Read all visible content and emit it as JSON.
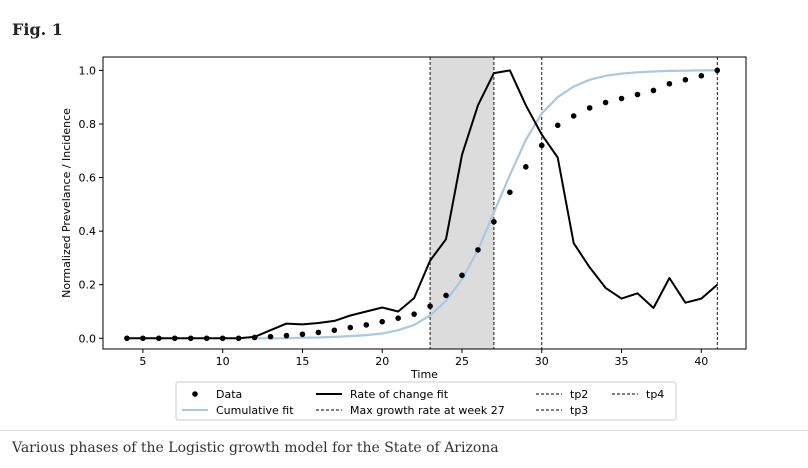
{
  "figure": {
    "label": "Fig. 1",
    "caption": "Various phases of the Logistic growth model for the State of Arizona"
  },
  "chart_data": {
    "type": "line",
    "xlabel": "Time",
    "ylabel": "Normalized Prevelance / Incidence",
    "xlim": [
      2.5,
      42.8
    ],
    "ylim": [
      -0.04,
      1.05
    ],
    "xticks": [
      5,
      10,
      15,
      20,
      25,
      30,
      35,
      40
    ],
    "yticks": [
      0.0,
      0.2,
      0.4,
      0.6,
      0.8,
      1.0
    ],
    "xtick_labels": [
      "5",
      "10",
      "15",
      "20",
      "25",
      "30",
      "35",
      "40"
    ],
    "ytick_labels": [
      "0.0",
      "0.2",
      "0.4",
      "0.6",
      "0.8",
      "1.0"
    ],
    "grid": false,
    "legend_position": "bottom-center",
    "shaded_region": {
      "x_start": 23,
      "x_end": 27,
      "color": "#dcdcdc"
    },
    "vertical_lines": [
      {
        "name": "Max growth rate at week 27",
        "x": 27
      },
      {
        "name": "tp2",
        "x": 23
      },
      {
        "name": "tp3",
        "x": 30
      },
      {
        "name": "tp4",
        "x": 41
      }
    ],
    "series": [
      {
        "name": "Data",
        "kind": "scatter",
        "color": "#000000",
        "x": [
          4,
          5,
          6,
          7,
          8,
          9,
          10,
          11,
          12,
          13,
          14,
          15,
          16,
          17,
          18,
          19,
          20,
          21,
          22,
          23,
          24,
          25,
          26,
          27,
          28,
          29,
          30,
          31,
          32,
          33,
          34,
          35,
          36,
          37,
          38,
          39,
          40,
          41
        ],
        "y": [
          0.0,
          0.0,
          0.0,
          0.0,
          0.0,
          0.0,
          0.0,
          0.0,
          0.003,
          0.006,
          0.01,
          0.015,
          0.022,
          0.03,
          0.04,
          0.05,
          0.062,
          0.075,
          0.09,
          0.12,
          0.16,
          0.235,
          0.33,
          0.435,
          0.545,
          0.64,
          0.72,
          0.795,
          0.83,
          0.86,
          0.88,
          0.895,
          0.91,
          0.925,
          0.95,
          0.965,
          0.98,
          1.0
        ]
      },
      {
        "name": "Rate of change fit",
        "kind": "line",
        "color": "#000000",
        "x": [
          4,
          5,
          6,
          7,
          8,
          9,
          10,
          11,
          12,
          13,
          14,
          15,
          16,
          17,
          18,
          19,
          20,
          21,
          22,
          23,
          24,
          25,
          26,
          27,
          28,
          29,
          30,
          31,
          32,
          33,
          34,
          35,
          36,
          37,
          38,
          39,
          40,
          41
        ],
        "y": [
          0.0,
          0.0,
          0.0,
          0.0,
          0.0,
          0.0,
          0.0,
          0.0,
          0.005,
          0.03,
          0.055,
          0.052,
          0.057,
          0.065,
          0.085,
          0.1,
          0.115,
          0.1,
          0.15,
          0.29,
          0.37,
          0.685,
          0.87,
          0.99,
          1.0,
          0.87,
          0.76,
          0.675,
          0.355,
          0.265,
          0.188,
          0.148,
          0.168,
          0.113,
          0.225,
          0.133,
          0.148,
          0.2
        ]
      },
      {
        "name": "Cumulative fit",
        "kind": "line",
        "color": "#a9c8e2",
        "x": [
          12,
          13,
          14,
          15,
          16,
          17,
          18,
          19,
          20,
          21,
          22,
          23,
          24,
          25,
          26,
          27,
          28,
          29,
          30,
          31,
          32,
          33,
          34,
          35,
          36,
          37,
          38,
          39,
          40,
          41
        ],
        "y": [
          0.0,
          0.0,
          0.0,
          0.002,
          0.003,
          0.005,
          0.008,
          0.012,
          0.018,
          0.03,
          0.05,
          0.085,
          0.14,
          0.22,
          0.33,
          0.47,
          0.61,
          0.74,
          0.84,
          0.9,
          0.94,
          0.965,
          0.98,
          0.988,
          0.993,
          0.996,
          0.998,
          0.999,
          1.0,
          1.0
        ]
      }
    ]
  }
}
